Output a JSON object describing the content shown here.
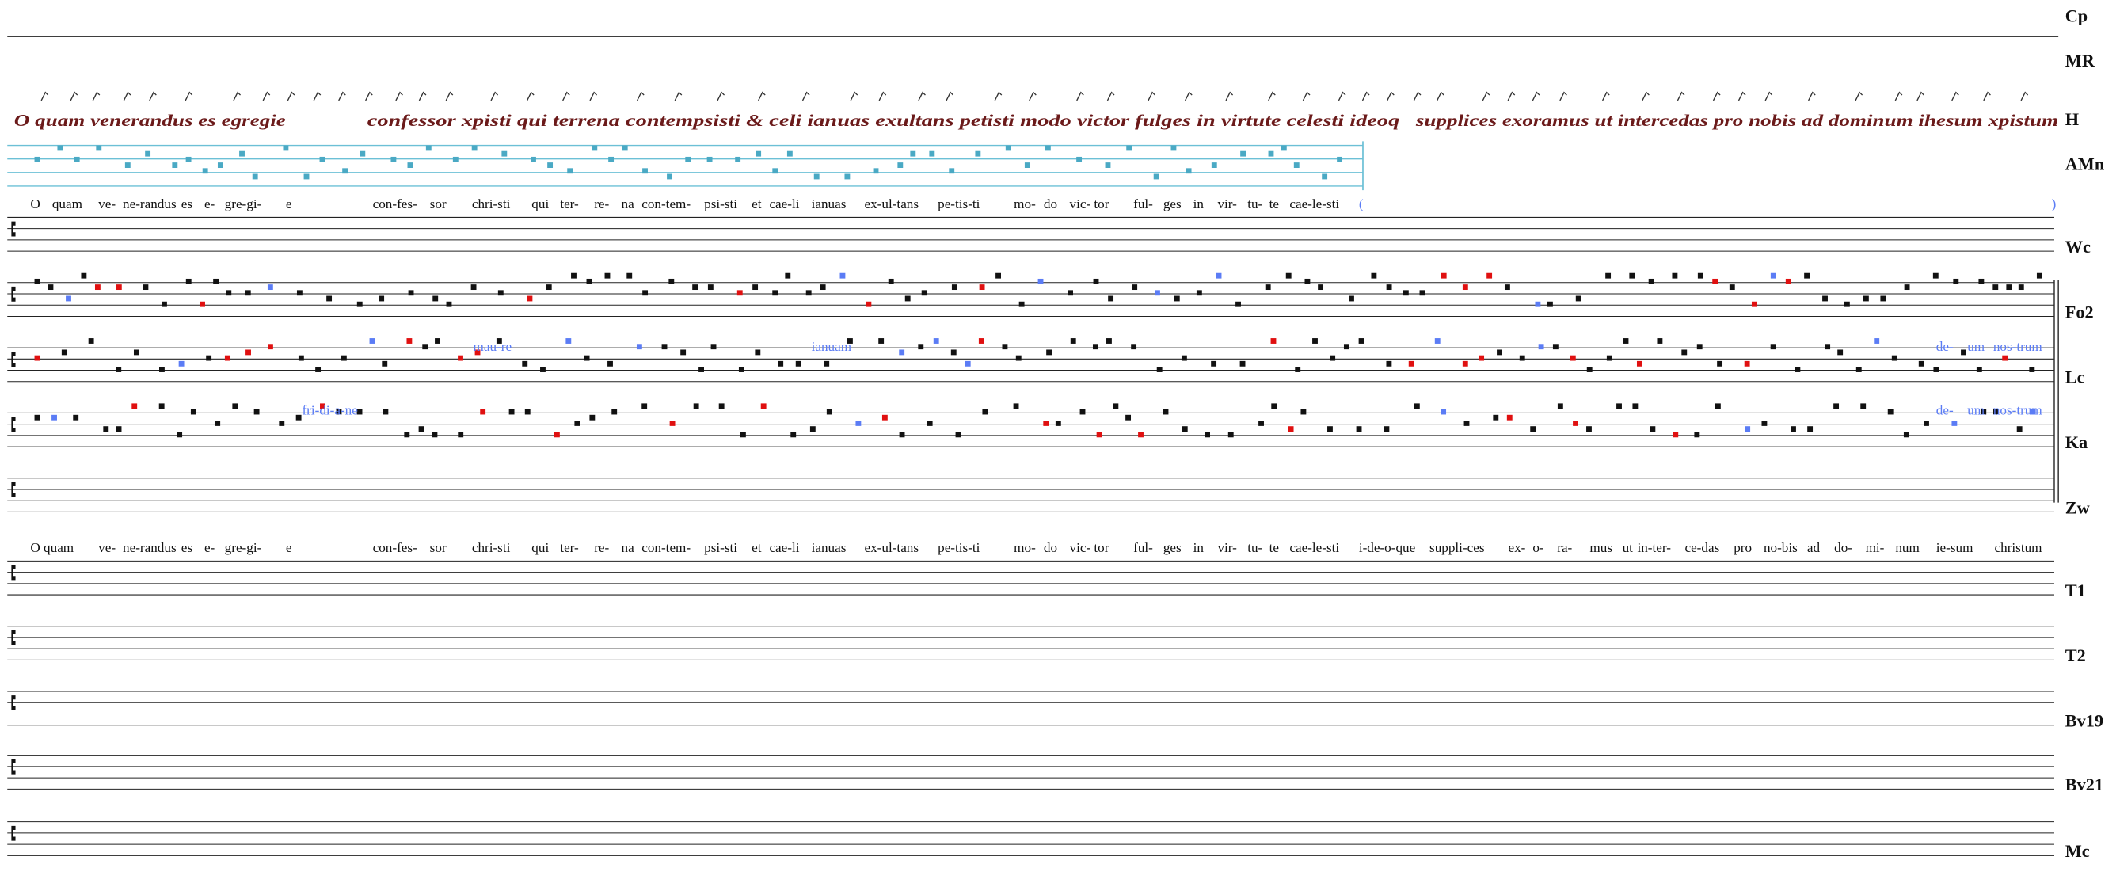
{
  "sigla": [
    "Cp",
    "MR",
    "H",
    "AMn",
    "Wc",
    "Fo2",
    "Lc",
    "Ka",
    "Zw",
    "T1",
    "T2",
    "Bv19",
    "Bv21",
    "Mc"
  ],
  "manuscript_h": [
    "O quam venerandus es egregie",
    "confessor xpisti qui terrena contempsisti & celi ianuas exultans petisti modo victor fulges in virtute celesti ideoq",
    "supplices exoramus ut intercedas pro nobis ad dominum ihesum xpistum"
  ],
  "lyrics_amn": [
    "O",
    "quam",
    "ve-",
    "ne-randus",
    "es",
    "e-",
    "gre-gi-",
    "e",
    "con-fes-",
    "sor",
    "chri-sti",
    "qui",
    "ter-",
    "re-",
    "na",
    "con-tem-",
    "psi-sti",
    "et",
    "cae-li",
    "ianuas",
    "ex-ul-tans",
    "pe-tis-ti",
    "mo-",
    "do",
    "vic-",
    "tor",
    "ful-",
    "ges",
    "in",
    "vir-",
    "tu-",
    "te",
    "cae-le-sti",
    "(",
    ")"
  ],
  "lyrics_zw": [
    "O quam",
    "ve-",
    "ne-randus",
    "es",
    "e-",
    "gre-gi-",
    "e",
    "con-fes-",
    "sor",
    "chri-sti",
    "qui",
    "ter-",
    "re-",
    "na",
    "con-tem-",
    "psi-sti",
    "et",
    "cae-li",
    "ianuas",
    "ex-ul-tans",
    "pe-tis-ti",
    "mo-",
    "do",
    "vic-",
    "tor",
    "ful-",
    "ges",
    "in",
    "vir-",
    "tu-",
    "te",
    "cae-le-sti",
    "i-de-o-que",
    "suppli-ces",
    "ex-",
    "o-",
    "ra-",
    "mus",
    "ut",
    "in-ter-",
    "ce-das",
    "pro",
    "no-bis",
    "ad",
    "do-",
    "mi-",
    "num",
    "ie-sum",
    "christum"
  ],
  "variants": [
    "mau-re",
    "ianuam",
    "de-",
    "um",
    "nos-trum",
    "fri-di-a-ne",
    "de-",
    "um",
    "nos-trum"
  ]
}
